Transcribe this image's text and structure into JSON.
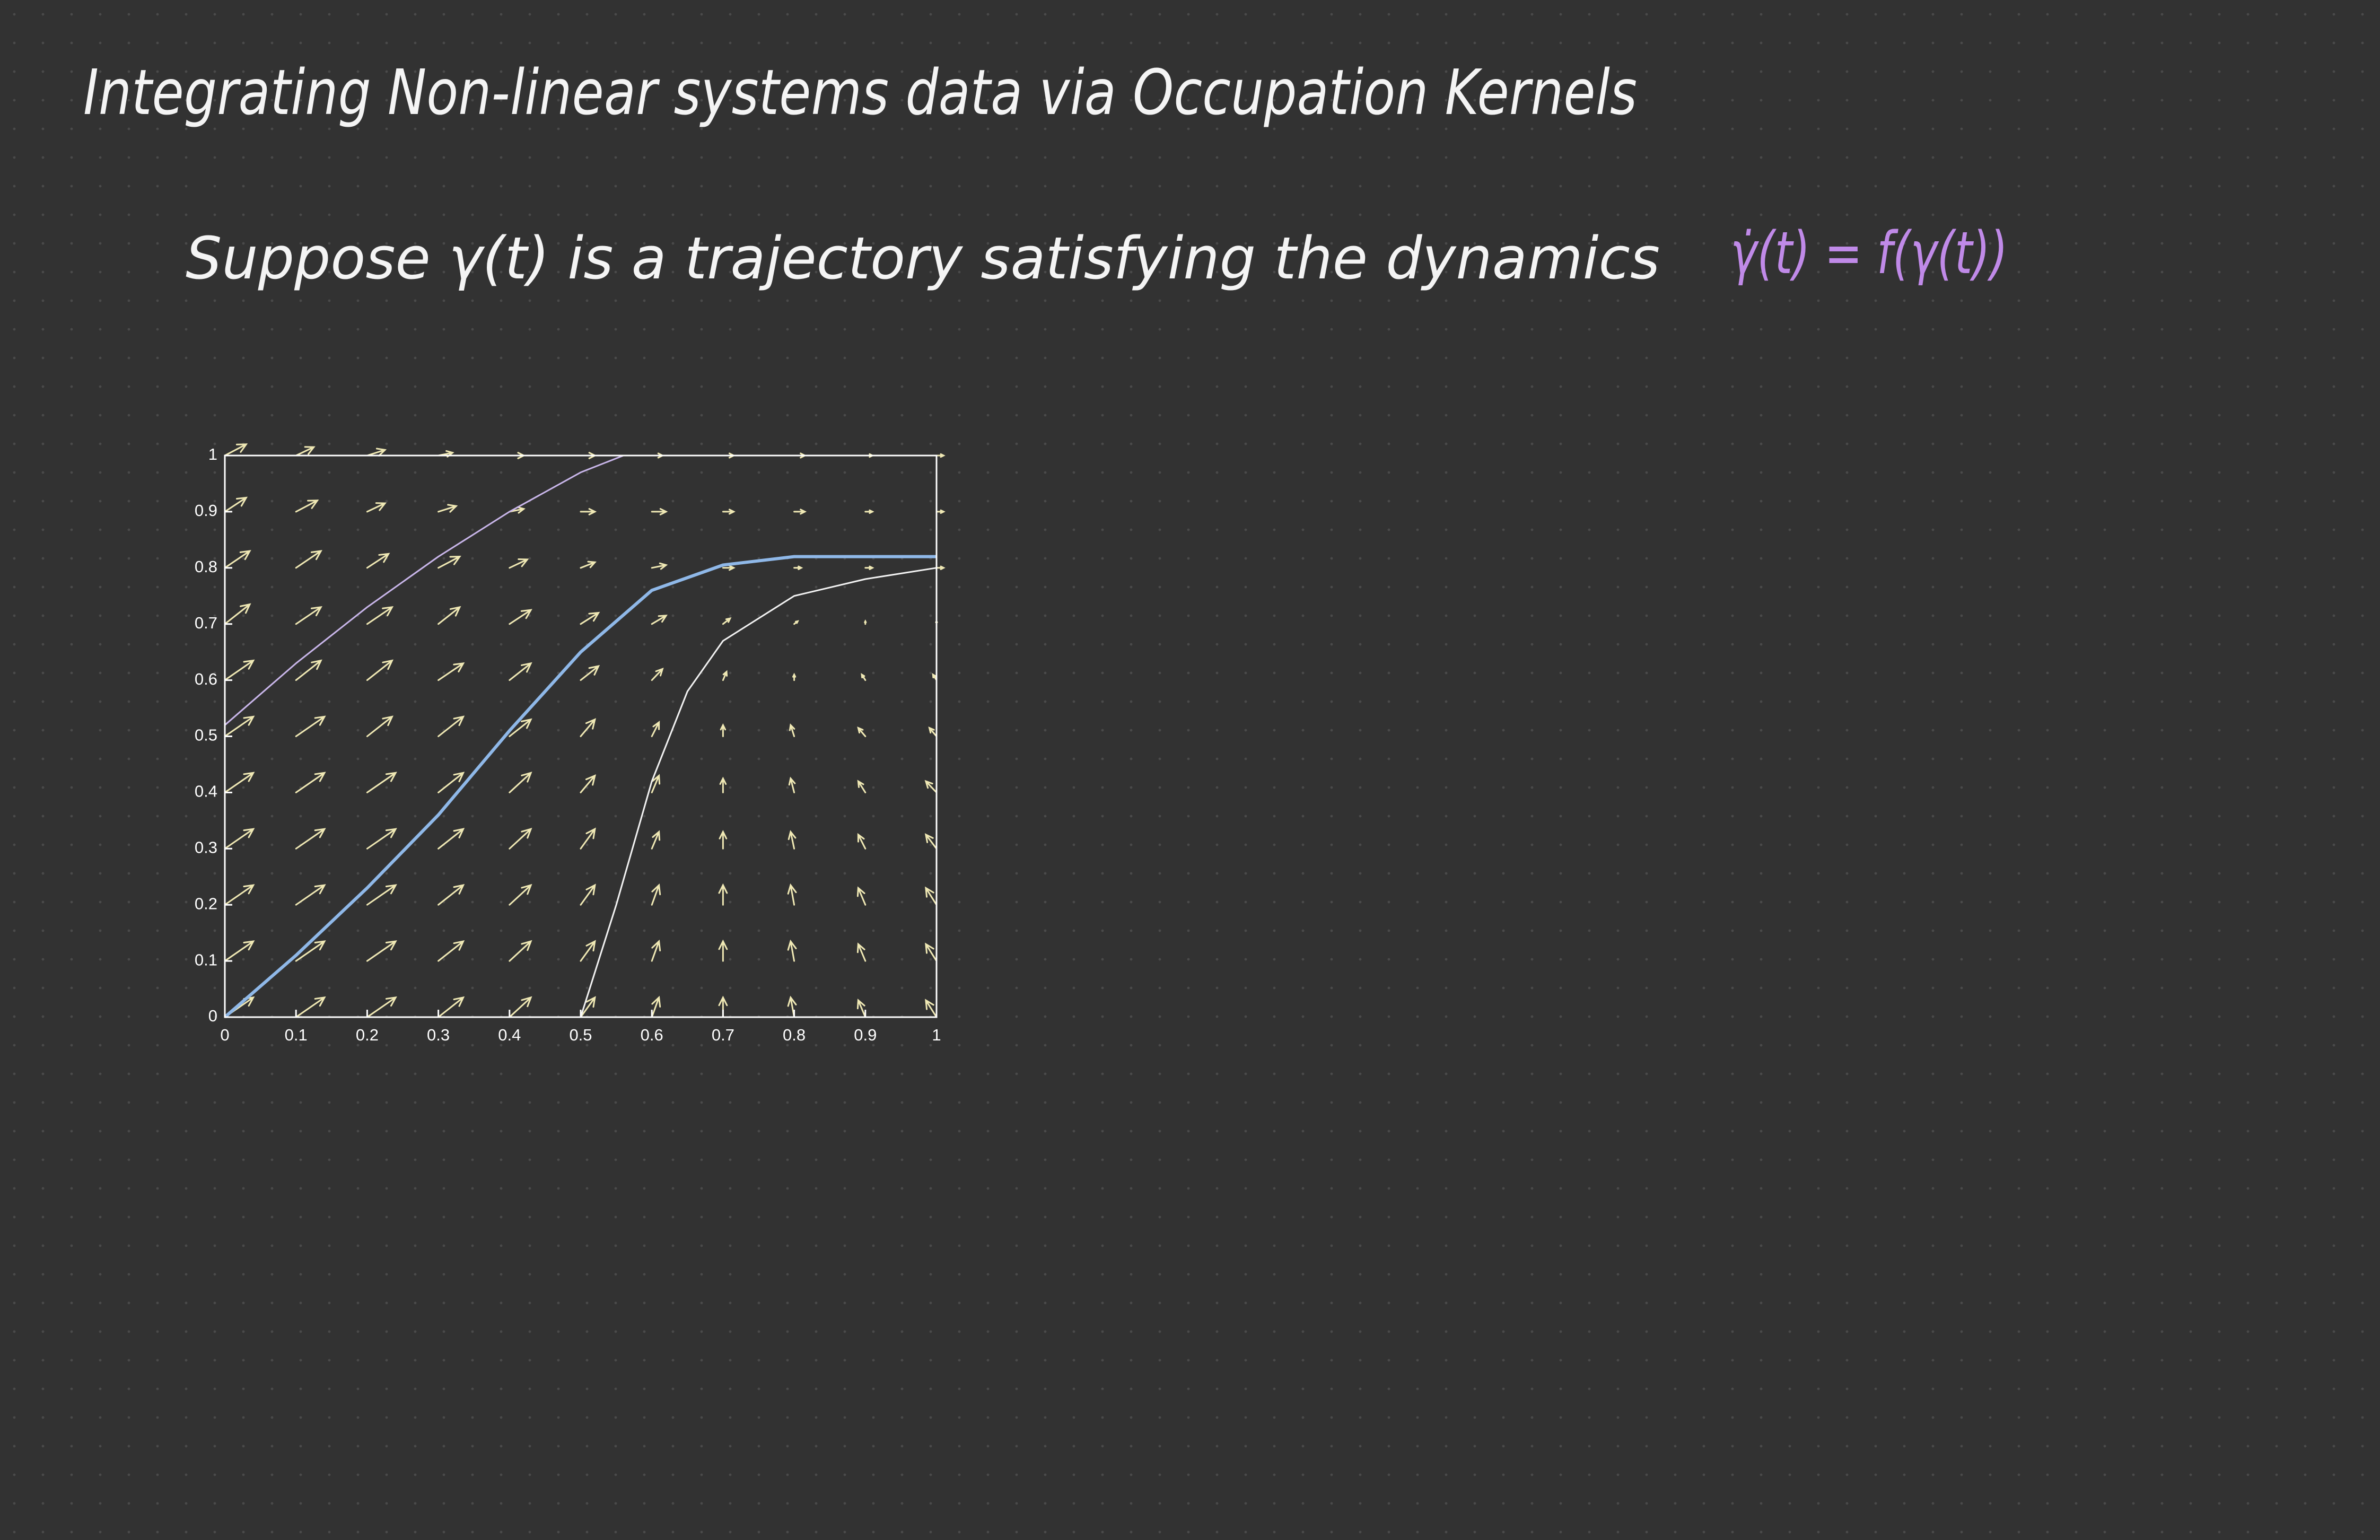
{
  "note": {
    "title": "Integrating Non-linear systems data via Occupation Kernels",
    "statement": "Suppose γ(t) is a trajectory satisfying the dynamics",
    "equation": "γ̇(t) = f(γ(t))"
  },
  "chart_data": {
    "type": "quiver",
    "color": "#efe8b4",
    "x": [
      0,
      0.1,
      0.2,
      0.3,
      0.4,
      0.5,
      0.6,
      0.7,
      0.8,
      0.9,
      1
    ],
    "y": [
      0,
      0.1,
      0.2,
      0.3,
      0.4,
      0.5,
      0.6,
      0.7,
      0.8,
      0.9,
      1
    ],
    "u": [
      [
        0.04,
        0.04,
        0.04,
        0.035,
        0.03,
        0.02,
        0.01,
        0.0,
        -0.005,
        -0.01,
        -0.015
      ],
      [
        0.04,
        0.04,
        0.04,
        0.035,
        0.03,
        0.02,
        0.01,
        0.0,
        -0.005,
        -0.01,
        -0.015
      ],
      [
        0.04,
        0.04,
        0.04,
        0.035,
        0.03,
        0.02,
        0.01,
        0.0,
        -0.005,
        -0.01,
        -0.015
      ],
      [
        0.04,
        0.04,
        0.04,
        0.035,
        0.03,
        0.02,
        0.01,
        0.0,
        -0.005,
        -0.01,
        -0.015
      ],
      [
        0.04,
        0.04,
        0.04,
        0.035,
        0.03,
        0.02,
        0.01,
        0.0,
        -0.005,
        -0.01,
        -0.015
      ],
      [
        0.04,
        0.04,
        0.035,
        0.035,
        0.03,
        0.02,
        0.01,
        0.0,
        -0.005,
        -0.01,
        -0.01
      ],
      [
        0.04,
        0.035,
        0.035,
        0.035,
        0.03,
        0.025,
        0.015,
        0.005,
        0,
        -0.005,
        -0.005
      ],
      [
        0.035,
        0.035,
        0.035,
        0.03,
        0.03,
        0.025,
        0.02,
        0.01,
        0.005,
        0,
        0
      ],
      [
        0.035,
        0.035,
        0.03,
        0.03,
        0.025,
        0.02,
        0.02,
        0.015,
        0.01,
        0.01,
        0.01
      ],
      [
        0.03,
        0.03,
        0.025,
        0.025,
        0.02,
        0.02,
        0.02,
        0.015,
        0.015,
        0.01,
        0.01
      ],
      [
        0.03,
        0.025,
        0.025,
        0.02,
        0.02,
        0.02,
        0.015,
        0.015,
        0.015,
        0.01,
        0.01
      ]
    ],
    "v": [
      [
        0.035,
        0.035,
        0.035,
        0.035,
        0.035,
        0.035,
        0.035,
        0.035,
        0.035,
        0.03,
        0.03
      ],
      [
        0.035,
        0.035,
        0.035,
        0.035,
        0.035,
        0.035,
        0.035,
        0.035,
        0.035,
        0.03,
        0.03
      ],
      [
        0.035,
        0.035,
        0.035,
        0.035,
        0.035,
        0.035,
        0.035,
        0.035,
        0.035,
        0.03,
        0.03
      ],
      [
        0.035,
        0.035,
        0.035,
        0.035,
        0.035,
        0.035,
        0.03,
        0.03,
        0.03,
        0.025,
        0.025
      ],
      [
        0.035,
        0.035,
        0.035,
        0.035,
        0.035,
        0.03,
        0.03,
        0.025,
        0.025,
        0.02,
        0.02
      ],
      [
        0.035,
        0.035,
        0.035,
        0.035,
        0.03,
        0.03,
        0.025,
        0.02,
        0.02,
        0.015,
        0.015
      ],
      [
        0.035,
        0.035,
        0.035,
        0.03,
        0.03,
        0.025,
        0.02,
        0.015,
        0.01,
        0.01,
        0.01
      ],
      [
        0.035,
        0.03,
        0.03,
        0.03,
        0.025,
        0.02,
        0.015,
        0.01,
        0.005,
        0.005,
        0.005
      ],
      [
        0.03,
        0.03,
        0.025,
        0.02,
        0.015,
        0.01,
        0.005,
        0,
        0,
        0,
        0
      ],
      [
        0.025,
        0.02,
        0.015,
        0.01,
        0.005,
        0,
        0,
        0,
        0,
        0,
        0
      ],
      [
        0.02,
        0.015,
        0.01,
        0.005,
        0,
        0,
        0,
        0,
        0,
        0,
        0
      ]
    ],
    "series": [
      {
        "color": "#8fb8e8",
        "x": [
          0,
          0.1,
          0.2,
          0.3,
          0.4,
          0.5,
          0.6,
          0.7,
          0.8,
          0.9,
          1
        ],
        "values": [
          0,
          0.11,
          0.23,
          0.36,
          0.51,
          0.65,
          0.76,
          0.805,
          0.82,
          0.82,
          0.82
        ]
      },
      {
        "color": "#c9b6ea",
        "x": [
          0,
          0.1,
          0.2,
          0.3,
          0.4,
          0.5,
          0.56
        ],
        "values": [
          0.52,
          0.63,
          0.73,
          0.82,
          0.9,
          0.97,
          1
        ]
      },
      {
        "color": "#f2f2f2",
        "x": [
          0.5,
          0.55,
          0.6,
          0.65,
          0.7,
          0.8,
          0.9,
          1
        ],
        "values": [
          0,
          0.2,
          0.42,
          0.58,
          0.67,
          0.75,
          0.78,
          0.8
        ]
      }
    ],
    "xlim": [
      0,
      1
    ],
    "ylim": [
      0,
      1
    ],
    "xticks": [
      0,
      0.1,
      0.2,
      0.3,
      0.4,
      0.5,
      0.6,
      0.7,
      0.8,
      0.9,
      1
    ],
    "yticks": [
      0,
      0.1,
      0.2,
      0.3,
      0.4,
      0.5,
      0.6,
      0.7,
      0.8,
      0.9,
      1
    ]
  }
}
